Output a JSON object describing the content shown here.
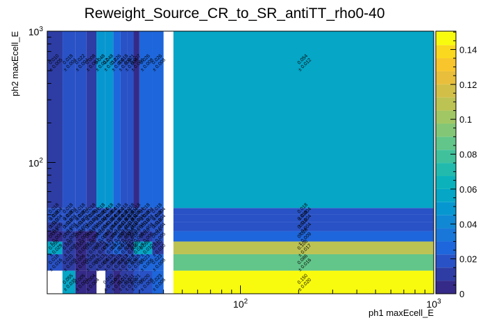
{
  "chart_data": {
    "type": "heatmap",
    "title": "Reweight_Source_CR_to_SR_antiTT_rho0-40",
    "xlabel": "ph1 maxEcell_E",
    "ylabel": "ph2 maxEcell_E",
    "x_scale": "log",
    "y_scale": "log",
    "xlim": [
      10,
      1000
    ],
    "ylim": [
      10,
      1000
    ],
    "x_ticks": [
      {
        "value": 100,
        "base": "10",
        "exp": "2"
      },
      {
        "value": 1000,
        "base": "10",
        "exp": "3"
      }
    ],
    "y_ticks": [
      {
        "value": 100,
        "base": "10",
        "exp": "2"
      },
      {
        "value": 1000,
        "base": "10",
        "exp": "3"
      }
    ],
    "x_edges": [
      10,
      12,
      14,
      16,
      18,
      20,
      22,
      24,
      26,
      28,
      30,
      35,
      40,
      45,
      1000
    ],
    "y_edges": [
      10,
      15,
      20,
      25,
      30,
      35,
      40,
      45,
      1000
    ],
    "zlim": [
      0,
      0.15
    ],
    "z_ticks": [
      "0",
      "0.02",
      "0.04",
      "0.06",
      "0.08",
      "0.1",
      "0.12",
      "0.14"
    ],
    "colormap": [
      "#352a87",
      "#2e3da4",
      "#2952c6",
      "#1e66db",
      "#1a77da",
      "#1188d4",
      "#0797d0",
      "#05a6c6",
      "#0cb2bb",
      "#22baad",
      "#40c19c",
      "#62c589",
      "#83c776",
      "#a1c764",
      "#bcc353",
      "#d2bf48",
      "#e8be3c",
      "#f8c52d",
      "#fad81f",
      "#f9fb0e"
    ],
    "cells": [
      {
        "x": 1,
        "y": 0,
        "value": 0.055,
        "error": 0.035
      },
      {
        "x": 2,
        "y": 0,
        "value": 0.005,
        "error": 0.004
      },
      {
        "x": 3,
        "y": 0,
        "value": 0.004,
        "error": 0.004
      },
      {
        "x": 5,
        "y": 0,
        "value": 0.01,
        "error": 0.01
      },
      {
        "x": 6,
        "y": 0,
        "value": 0.005,
        "error": 0.01
      },
      {
        "x": 7,
        "y": 0,
        "value": 0.013,
        "error": 0.01
      },
      {
        "x": 8,
        "y": 0,
        "value": 0.011,
        "error": 0.01
      },
      {
        "x": 9,
        "y": 0,
        "value": 0.021,
        "error": 0.006
      },
      {
        "x": 10,
        "y": 0,
        "value": 0.02,
        "error": 0.008
      },
      {
        "x": 11,
        "y": 0,
        "value": 0.023,
        "error": 0.008
      },
      {
        "x": 13,
        "y": 0,
        "value": 0.15,
        "error": 0.02
      },
      {
        "x": 0,
        "y": 1,
        "value": 0.018,
        "error": 0.016
      },
      {
        "x": 1,
        "y": 1,
        "value": 0.01,
        "error": 0.009
      },
      {
        "x": 2,
        "y": 1,
        "value": 0.006,
        "error": 0.009
      },
      {
        "x": 3,
        "y": 1,
        "value": 0.009,
        "error": 0.008
      },
      {
        "x": 4,
        "y": 1,
        "value": 0.013,
        "error": 0.008
      },
      {
        "x": 5,
        "y": 1,
        "value": 0.013,
        "error": 0.008
      },
      {
        "x": 6,
        "y": 1,
        "value": 0.01,
        "error": 0.008
      },
      {
        "x": 7,
        "y": 1,
        "value": 0.013,
        "error": 0.008
      },
      {
        "x": 8,
        "y": 1,
        "value": 0.016,
        "error": 0.009
      },
      {
        "x": 9,
        "y": 1,
        "value": 0.015,
        "error": 0.006
      },
      {
        "x": 10,
        "y": 1,
        "value": 0.023,
        "error": 0.006
      },
      {
        "x": 11,
        "y": 1,
        "value": 0.023,
        "error": 0.008
      },
      {
        "x": 13,
        "y": 1,
        "value": 0.086,
        "error": 0.016
      },
      {
        "x": 0,
        "y": 2,
        "value": 0.058,
        "error": 0.029
      },
      {
        "x": 1,
        "y": 2,
        "value": 0.009,
        "error": 0.008
      },
      {
        "x": 2,
        "y": 2,
        "value": 0.004,
        "error": 0.008
      },
      {
        "x": 3,
        "y": 2,
        "value": 0.008,
        "error": 0.006
      },
      {
        "x": 4,
        "y": 2,
        "value": 0.011,
        "error": 0.009
      },
      {
        "x": 5,
        "y": 2,
        "value": 0.021,
        "error": 0.009
      },
      {
        "x": 6,
        "y": 2,
        "value": 0.023,
        "error": 0.009
      },
      {
        "x": 7,
        "y": 2,
        "value": 0.016,
        "error": 0.006
      },
      {
        "x": 8,
        "y": 2,
        "value": 0.012,
        "error": 0.006
      },
      {
        "x": 9,
        "y": 2,
        "value": 0.059,
        "error": 0.01
      },
      {
        "x": 10,
        "y": 2,
        "value": 0.059,
        "error": 0.01
      },
      {
        "x": 11,
        "y": 2,
        "value": 0.01,
        "error": 0.01
      },
      {
        "x": 13,
        "y": 2,
        "value": 0.106,
        "error": 0.017
      },
      {
        "x": 0,
        "y": 3,
        "value": 0.003,
        "error": 0.004
      },
      {
        "x": 1,
        "y": 3,
        "value": 0.013,
        "error": 0.005
      },
      {
        "x": 2,
        "y": 3,
        "value": 0.005,
        "error": 0.006
      },
      {
        "x": 3,
        "y": 3,
        "value": 0.003,
        "error": 0.004
      },
      {
        "x": 4,
        "y": 3,
        "value": 0.016,
        "error": 0.005
      },
      {
        "x": 5,
        "y": 3,
        "value": 0.013,
        "error": 0.009
      },
      {
        "x": 6,
        "y": 3,
        "value": 0.016,
        "error": 0.008
      },
      {
        "x": 7,
        "y": 3,
        "value": 0.013,
        "error": 0.009
      },
      {
        "x": 8,
        "y": 3,
        "value": 0.008,
        "error": 0.013
      },
      {
        "x": 9,
        "y": 3,
        "value": 0.016,
        "error": 0.006
      },
      {
        "x": 10,
        "y": 3,
        "value": 0.01,
        "error": 0.006
      },
      {
        "x": 11,
        "y": 3,
        "value": 0.016,
        "error": 0.005
      },
      {
        "x": 13,
        "y": 3,
        "value": 0.028,
        "error": 0.009
      },
      {
        "x": 0,
        "y": 4,
        "value": 0.01,
        "error": 0.005
      },
      {
        "x": 1,
        "y": 4,
        "value": 0.018,
        "error": 0.004
      },
      {
        "x": 2,
        "y": 4,
        "value": 0.018,
        "error": 0.004
      },
      {
        "x": 3,
        "y": 4,
        "value": 0.018,
        "error": 0.004
      },
      {
        "x": 4,
        "y": 4,
        "value": 0.018,
        "error": 0.004
      },
      {
        "x": 5,
        "y": 4,
        "value": 0.018,
        "error": 0.004
      },
      {
        "x": 6,
        "y": 4,
        "value": 0.018,
        "error": 0.004
      },
      {
        "x": 7,
        "y": 4,
        "value": 0.018,
        "error": 0.004
      },
      {
        "x": 8,
        "y": 4,
        "value": 0.018,
        "error": 0.004
      },
      {
        "x": 9,
        "y": 4,
        "value": 0.018,
        "error": 0.004
      },
      {
        "x": 10,
        "y": 4,
        "value": 0.018,
        "error": 0.004
      },
      {
        "x": 11,
        "y": 4,
        "value": 0.018,
        "error": 0.004
      },
      {
        "x": 13,
        "y": 4,
        "value": 0.018,
        "error": 0.004
      },
      {
        "x": 0,
        "y": 5,
        "value": 0.018,
        "error": 0.004
      },
      {
        "x": 1,
        "y": 5,
        "value": 0.018,
        "error": 0.004
      },
      {
        "x": 2,
        "y": 5,
        "value": 0.018,
        "error": 0.004
      },
      {
        "x": 3,
        "y": 5,
        "value": 0.018,
        "error": 0.004
      },
      {
        "x": 4,
        "y": 5,
        "value": 0.018,
        "error": 0.004
      },
      {
        "x": 5,
        "y": 5,
        "value": 0.018,
        "error": 0.004
      },
      {
        "x": 6,
        "y": 5,
        "value": 0.018,
        "error": 0.004
      },
      {
        "x": 7,
        "y": 5,
        "value": 0.018,
        "error": 0.004
      },
      {
        "x": 8,
        "y": 5,
        "value": 0.018,
        "error": 0.004
      },
      {
        "x": 9,
        "y": 5,
        "value": 0.018,
        "error": 0.004
      },
      {
        "x": 10,
        "y": 5,
        "value": 0.018,
        "error": 0.004
      },
      {
        "x": 11,
        "y": 5,
        "value": 0.018,
        "error": 0.004
      },
      {
        "x": 13,
        "y": 5,
        "value": 0.018,
        "error": 0.004
      },
      {
        "x": 0,
        "y": 6,
        "value": 0.018,
        "error": 0.004
      },
      {
        "x": 1,
        "y": 6,
        "value": 0.018,
        "error": 0.004
      },
      {
        "x": 2,
        "y": 6,
        "value": 0.018,
        "error": 0.004
      },
      {
        "x": 3,
        "y": 6,
        "value": 0.018,
        "error": 0.004
      },
      {
        "x": 4,
        "y": 6,
        "value": 0.018,
        "error": 0.004
      },
      {
        "x": 5,
        "y": 6,
        "value": 0.018,
        "error": 0.004
      },
      {
        "x": 6,
        "y": 6,
        "value": 0.018,
        "error": 0.004
      },
      {
        "x": 7,
        "y": 6,
        "value": 0.018,
        "error": 0.004
      },
      {
        "x": 8,
        "y": 6,
        "value": 0.018,
        "error": 0.004
      },
      {
        "x": 9,
        "y": 6,
        "value": 0.018,
        "error": 0.004
      },
      {
        "x": 10,
        "y": 6,
        "value": 0.018,
        "error": 0.004
      },
      {
        "x": 11,
        "y": 6,
        "value": 0.018,
        "error": 0.004
      },
      {
        "x": 13,
        "y": 6,
        "value": 0.018,
        "error": 0.004
      },
      {
        "x": 0,
        "y": 7,
        "value": 0.01,
        "error": 0.005
      },
      {
        "x": 1,
        "y": 7,
        "value": 0.018,
        "error": 0.004
      },
      {
        "x": 2,
        "y": 7,
        "value": 0.022,
        "error": 0.004
      },
      {
        "x": 3,
        "y": 7,
        "value": 0.008,
        "error": 0.003
      },
      {
        "x": 4,
        "y": 7,
        "value": 0.048,
        "error": 0.012
      },
      {
        "x": 5,
        "y": 7,
        "value": 0.048,
        "error": 0.012
      },
      {
        "x": 6,
        "y": 7,
        "value": 0.026,
        "error": 0.008
      },
      {
        "x": 7,
        "y": 7,
        "value": 0.018,
        "error": 0.008
      },
      {
        "x": 8,
        "y": 7,
        "value": 0.021,
        "error": 0.006
      },
      {
        "x": 9,
        "y": 7,
        "value": 0.007,
        "error": 0.006
      },
      {
        "x": 10,
        "y": 7,
        "value": 0.026,
        "error": 0.008
      },
      {
        "x": 11,
        "y": 7,
        "value": 0.026,
        "error": 0.008
      },
      {
        "x": 13,
        "y": 7,
        "value": 0.054,
        "error": 0.012
      }
    ]
  }
}
